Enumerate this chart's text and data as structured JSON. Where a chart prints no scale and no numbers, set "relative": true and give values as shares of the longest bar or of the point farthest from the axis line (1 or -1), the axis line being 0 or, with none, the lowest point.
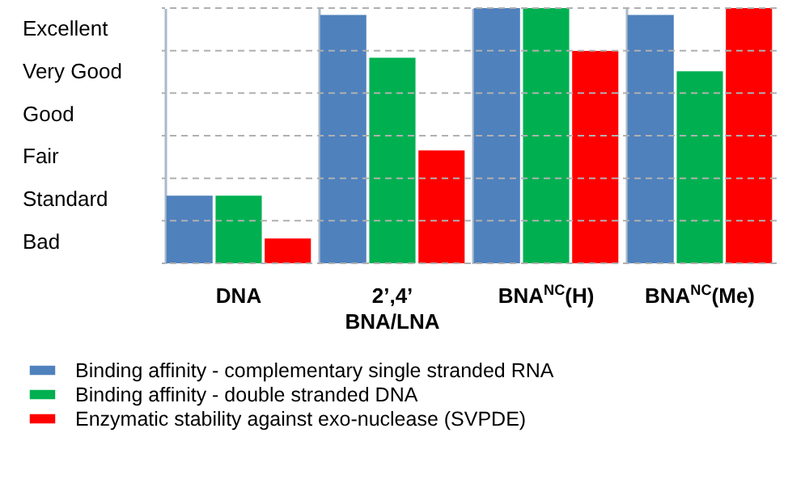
{
  "chart_data": {
    "type": "bar",
    "relative": true,
    "categories": [
      "DNA",
      "2’,4’ BNA/LNA",
      "BNA$^{NC}$(H)",
      "BNA$^{NC}$(Me)"
    ],
    "series": [
      {
        "name": "Binding affinity - complementary single stranded RNA",
        "color": "#4f81bd",
        "values": [
          0.265,
          0.973,
          1,
          0.973
        ]
      },
      {
        "name": "Binding affinity - double stranded DNA",
        "color": "#00b050",
        "values": [
          0.265,
          0.805,
          1,
          0.752
        ]
      },
      {
        "name": "Enzymatic stability against exo-nuclease (SVPDE)",
        "color": "#ff0000",
        "values": [
          0.097,
          0.442,
          0.832,
          1
        ]
      }
    ],
    "annotations": [
      "Excellent",
      "Very Good",
      "Good",
      "Fair",
      "Standard",
      "Bad"
    ],
    "grid": true,
    "legend": "bottom"
  }
}
